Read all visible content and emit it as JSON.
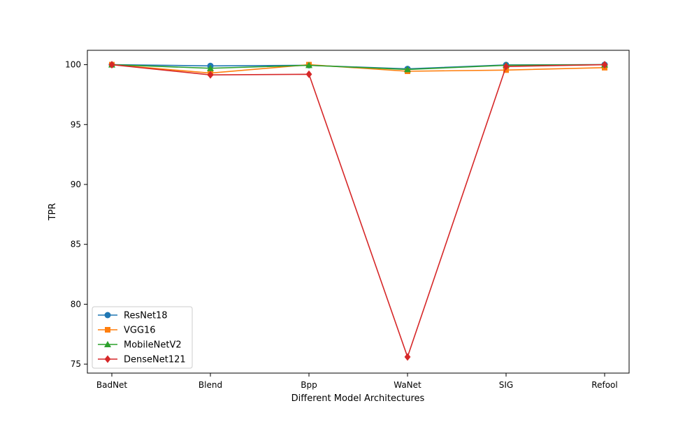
{
  "chart_data": {
    "type": "line",
    "title": "",
    "xlabel": "Different Model Architectures",
    "ylabel": "TPR",
    "categories": [
      "BadNet",
      "Blend",
      "Bpp",
      "WaNet",
      "SIG",
      "Refool"
    ],
    "ylim": [
      74.25,
      101.2
    ],
    "yticks": [
      75,
      80,
      85,
      90,
      95,
      100
    ],
    "grid": false,
    "legend_position": "lower-left",
    "series": [
      {
        "name": "ResNet18",
        "color": "#1f77b4",
        "marker": "circle",
        "values": [
          100.0,
          99.9,
          99.95,
          99.65,
          99.98,
          100.0
        ]
      },
      {
        "name": "VGG16",
        "color": "#ff7f0e",
        "marker": "square",
        "values": [
          100.0,
          99.3,
          100.0,
          99.45,
          99.55,
          99.75
        ]
      },
      {
        "name": "MobileNetV2",
        "color": "#2ca02c",
        "marker": "triangle",
        "values": [
          100.0,
          99.7,
          99.95,
          99.6,
          99.95,
          100.0
        ]
      },
      {
        "name": "DenseNet121",
        "color": "#d62728",
        "marker": "diamond",
        "values": [
          100.0,
          99.15,
          99.2,
          75.6,
          99.85,
          100.0
        ]
      }
    ]
  }
}
